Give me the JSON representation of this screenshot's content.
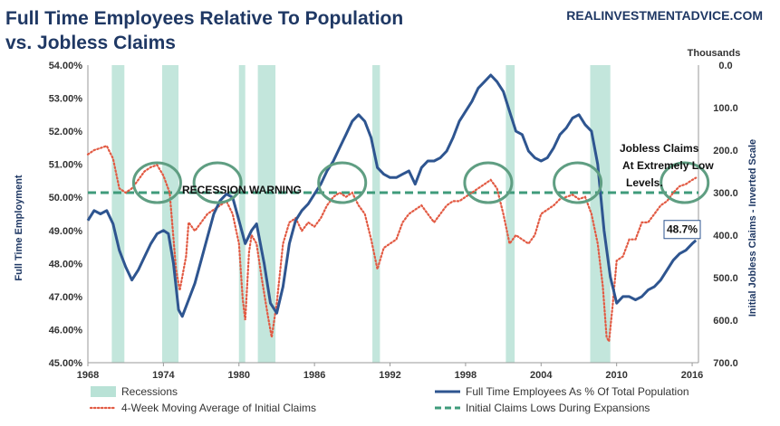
{
  "chart_data": {
    "type": "line",
    "title_lines": [
      "Full Time Employees Relative To Population",
      "vs. Jobless Claims"
    ],
    "source": "REALINVESTMENTADVICE.COM",
    "ylabel_left": "Full Time Employment",
    "ylabel_right": "Initial Jobless Claims - Inverted Scale",
    "right_axis_unit": "Thousands",
    "y_left_range": [
      45,
      54
    ],
    "y_left_ticks": [
      "45.00%",
      "46.00%",
      "47.00%",
      "48.00%",
      "49.00%",
      "50.00%",
      "51.00%",
      "52.00%",
      "53.00%",
      "54.00%"
    ],
    "y_right_range": [
      0,
      700
    ],
    "y_right_inverted": true,
    "y_right_ticks": [
      "0.0",
      "100.0",
      "200.0",
      "300.0",
      "400.0",
      "500.0",
      "600.0",
      "700.0"
    ],
    "x_range": [
      1968,
      2016.5
    ],
    "x_ticks": [
      "1968",
      "1974",
      "1980",
      "1986",
      "1992",
      "1998",
      "2004",
      "2010",
      "2016"
    ],
    "recessions": [
      [
        1969.9,
        1970.9
      ],
      [
        1973.9,
        1975.2
      ],
      [
        1980.0,
        1980.5
      ],
      [
        1981.5,
        1982.9
      ],
      [
        1990.6,
        1991.2
      ],
      [
        2001.2,
        2001.9
      ],
      [
        2007.9,
        2009.5
      ]
    ],
    "threshold_level": 300,
    "annotations": {
      "recession_warning": "RECESSION WARNING",
      "jobless_claims_note": [
        "Jobless Claims",
        "At Extremely Low",
        "Levels."
      ],
      "last_value": "48.7%"
    },
    "highlight_circles_years": [
      1973.5,
      1978.3,
      1988.2,
      1999.8,
      2006.9,
      2015.4
    ],
    "series": [
      {
        "name": "Full Time Employees As % Of Total Population",
        "color": "#2e5590",
        "axis": "left",
        "points": [
          [
            1968,
            49.3
          ],
          [
            1968.5,
            49.6
          ],
          [
            1969,
            49.5
          ],
          [
            1969.5,
            49.6
          ],
          [
            1970,
            49.2
          ],
          [
            1970.5,
            48.4
          ],
          [
            1971,
            47.9
          ],
          [
            1971.5,
            47.5
          ],
          [
            1972,
            47.8
          ],
          [
            1972.5,
            48.2
          ],
          [
            1973,
            48.6
          ],
          [
            1973.5,
            48.9
          ],
          [
            1974,
            49.0
          ],
          [
            1974.4,
            48.9
          ],
          [
            1974.8,
            48.0
          ],
          [
            1975.2,
            46.6
          ],
          [
            1975.5,
            46.4
          ],
          [
            1976,
            46.9
          ],
          [
            1976.5,
            47.4
          ],
          [
            1977,
            48.1
          ],
          [
            1977.5,
            48.8
          ],
          [
            1978,
            49.5
          ],
          [
            1978.5,
            49.9
          ],
          [
            1979,
            50.1
          ],
          [
            1979.5,
            50.0
          ],
          [
            1980,
            49.3
          ],
          [
            1980.5,
            48.6
          ],
          [
            1981,
            49.0
          ],
          [
            1981.4,
            49.2
          ],
          [
            1982,
            48.0
          ],
          [
            1982.5,
            46.8
          ],
          [
            1983,
            46.5
          ],
          [
            1983.5,
            47.3
          ],
          [
            1984,
            48.6
          ],
          [
            1984.5,
            49.3
          ],
          [
            1985,
            49.6
          ],
          [
            1985.5,
            49.8
          ],
          [
            1986,
            50.1
          ],
          [
            1986.5,
            50.4
          ],
          [
            1987,
            50.8
          ],
          [
            1987.5,
            51.1
          ],
          [
            1988,
            51.5
          ],
          [
            1988.5,
            51.9
          ],
          [
            1989,
            52.3
          ],
          [
            1989.5,
            52.5
          ],
          [
            1990,
            52.3
          ],
          [
            1990.5,
            51.8
          ],
          [
            1991,
            50.9
          ],
          [
            1991.5,
            50.7
          ],
          [
            1992,
            50.6
          ],
          [
            1992.5,
            50.6
          ],
          [
            1993,
            50.7
          ],
          [
            1993.5,
            50.8
          ],
          [
            1994,
            50.4
          ],
          [
            1994.5,
            50.9
          ],
          [
            1995,
            51.1
          ],
          [
            1995.5,
            51.1
          ],
          [
            1996,
            51.2
          ],
          [
            1996.5,
            51.4
          ],
          [
            1997,
            51.8
          ],
          [
            1997.5,
            52.3
          ],
          [
            1998,
            52.6
          ],
          [
            1998.5,
            52.9
          ],
          [
            1999,
            53.3
          ],
          [
            1999.5,
            53.5
          ],
          [
            2000,
            53.7
          ],
          [
            2000.5,
            53.5
          ],
          [
            2001,
            53.2
          ],
          [
            2001.5,
            52.6
          ],
          [
            2002,
            52.0
          ],
          [
            2002.5,
            51.9
          ],
          [
            2003,
            51.4
          ],
          [
            2003.5,
            51.2
          ],
          [
            2004,
            51.1
          ],
          [
            2004.5,
            51.2
          ],
          [
            2005,
            51.5
          ],
          [
            2005.5,
            51.9
          ],
          [
            2006,
            52.1
          ],
          [
            2006.5,
            52.4
          ],
          [
            2007,
            52.5
          ],
          [
            2007.5,
            52.2
          ],
          [
            2008,
            52.0
          ],
          [
            2008.5,
            51.0
          ],
          [
            2009,
            49.0
          ],
          [
            2009.5,
            47.6
          ],
          [
            2010,
            46.8
          ],
          [
            2010.5,
            47.0
          ],
          [
            2011,
            47.0
          ],
          [
            2011.5,
            46.9
          ],
          [
            2012,
            47.0
          ],
          [
            2012.5,
            47.2
          ],
          [
            2013,
            47.3
          ],
          [
            2013.5,
            47.5
          ],
          [
            2014,
            47.8
          ],
          [
            2014.5,
            48.1
          ],
          [
            2015,
            48.3
          ],
          [
            2015.5,
            48.4
          ],
          [
            2016,
            48.6
          ],
          [
            2016.3,
            48.7
          ]
        ]
      },
      {
        "name": "4-Week Moving Average of Initial Claims",
        "color": "#e25a43",
        "axis": "right",
        "points": [
          [
            1968,
            210
          ],
          [
            1968.5,
            200
          ],
          [
            1969,
            195
          ],
          [
            1969.5,
            190
          ],
          [
            1970,
            220
          ],
          [
            1970.5,
            290
          ],
          [
            1971,
            300
          ],
          [
            1971.5,
            290
          ],
          [
            1972,
            270
          ],
          [
            1972.5,
            250
          ],
          [
            1973,
            240
          ],
          [
            1973.5,
            235
          ],
          [
            1974,
            260
          ],
          [
            1974.5,
            300
          ],
          [
            1975,
            480
          ],
          [
            1975.3,
            530
          ],
          [
            1975.8,
            450
          ],
          [
            1976,
            370
          ],
          [
            1976.5,
            390
          ],
          [
            1977,
            370
          ],
          [
            1977.5,
            350
          ],
          [
            1978,
            340
          ],
          [
            1978.5,
            330
          ],
          [
            1979,
            320
          ],
          [
            1979.5,
            350
          ],
          [
            1980,
            420
          ],
          [
            1980.3,
            550
          ],
          [
            1980.5,
            600
          ],
          [
            1980.8,
            440
          ],
          [
            1981,
            400
          ],
          [
            1981.4,
            420
          ],
          [
            1981.8,
            500
          ],
          [
            1982.3,
            590
          ],
          [
            1982.6,
            640
          ],
          [
            1983,
            560
          ],
          [
            1983.5,
            420
          ],
          [
            1984,
            370
          ],
          [
            1984.5,
            360
          ],
          [
            1985,
            390
          ],
          [
            1985.5,
            370
          ],
          [
            1986,
            380
          ],
          [
            1986.5,
            360
          ],
          [
            1987,
            330
          ],
          [
            1987.5,
            310
          ],
          [
            1988,
            300
          ],
          [
            1988.5,
            310
          ],
          [
            1989,
            300
          ],
          [
            1989.5,
            330
          ],
          [
            1990,
            350
          ],
          [
            1990.5,
            410
          ],
          [
            1991,
            480
          ],
          [
            1991.5,
            430
          ],
          [
            1992,
            420
          ],
          [
            1992.5,
            410
          ],
          [
            1993,
            370
          ],
          [
            1993.5,
            350
          ],
          [
            1994,
            340
          ],
          [
            1994.5,
            330
          ],
          [
            1995,
            350
          ],
          [
            1995.5,
            370
          ],
          [
            1996,
            350
          ],
          [
            1996.5,
            330
          ],
          [
            1997,
            320
          ],
          [
            1997.5,
            320
          ],
          [
            1998,
            310
          ],
          [
            1998.5,
            300
          ],
          [
            1999,
            290
          ],
          [
            1999.5,
            280
          ],
          [
            2000,
            270
          ],
          [
            2000.5,
            290
          ],
          [
            2001,
            350
          ],
          [
            2001.5,
            420
          ],
          [
            2002,
            400
          ],
          [
            2002.5,
            410
          ],
          [
            2003,
            420
          ],
          [
            2003.5,
            400
          ],
          [
            2004,
            350
          ],
          [
            2004.5,
            340
          ],
          [
            2005,
            330
          ],
          [
            2005.5,
            315
          ],
          [
            2006,
            310
          ],
          [
            2006.5,
            305
          ],
          [
            2007,
            315
          ],
          [
            2007.5,
            310
          ],
          [
            2008,
            350
          ],
          [
            2008.5,
            420
          ],
          [
            2008.9,
            520
          ],
          [
            2009.2,
            640
          ],
          [
            2009.4,
            650
          ],
          [
            2009.7,
            560
          ],
          [
            2010,
            460
          ],
          [
            2010.5,
            450
          ],
          [
            2011,
            410
          ],
          [
            2011.5,
            410
          ],
          [
            2012,
            370
          ],
          [
            2012.5,
            370
          ],
          [
            2013,
            350
          ],
          [
            2013.5,
            330
          ],
          [
            2014,
            320
          ],
          [
            2014.5,
            300
          ],
          [
            2015,
            285
          ],
          [
            2015.5,
            280
          ],
          [
            2016,
            270
          ],
          [
            2016.3,
            265
          ]
        ]
      }
    ],
    "legend": [
      {
        "name": "Recessions",
        "type": "box",
        "color": "#b9e2d6"
      },
      {
        "name": "Full Time Employees As % Of Total Population",
        "type": "line",
        "color": "#2e5590"
      },
      {
        "name": "4-Week Moving Average of Initial Claims",
        "type": "dots",
        "color": "#e25a43"
      },
      {
        "name": "Initial Claims Lows During Expansions",
        "type": "dash",
        "color": "#3f9b7b"
      }
    ]
  }
}
